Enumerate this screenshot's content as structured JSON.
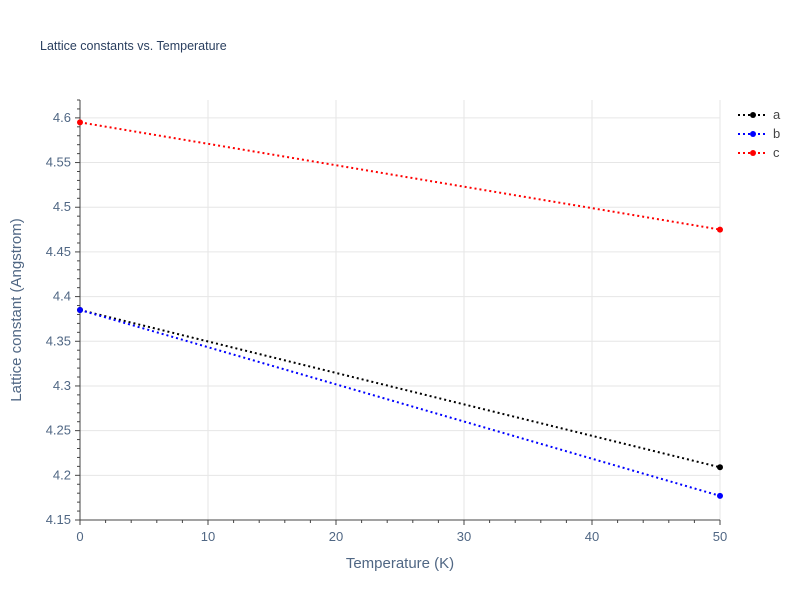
{
  "chart_data": {
    "type": "line",
    "title": "Lattice constants vs. Temperature",
    "xlabel": "Temperature (K)",
    "ylabel": "Lattice constant (Angstrom)",
    "x": [
      0,
      50
    ],
    "xlim": [
      0,
      50
    ],
    "ylim": [
      4.15,
      4.62
    ],
    "x_ticks": [
      0,
      10,
      20,
      30,
      40,
      50
    ],
    "x_tick_labels": [
      "0",
      "10",
      "20",
      "30",
      "40",
      "50"
    ],
    "y_ticks": [
      4.15,
      4.2,
      4.25,
      4.3,
      4.35,
      4.4,
      4.45,
      4.5,
      4.55,
      4.6
    ],
    "y_tick_labels": [
      "4.15",
      "4.2",
      "4.25",
      "4.3",
      "4.35",
      "4.4",
      "4.45",
      "4.5",
      "4.55",
      "4.6"
    ],
    "grid": true,
    "legend_position": "top-right",
    "line_style": "dotted",
    "series": [
      {
        "name": "a",
        "color": "#000000",
        "values": [
          4.385,
          4.209
        ]
      },
      {
        "name": "b",
        "color": "#0000ff",
        "values": [
          4.385,
          4.177
        ]
      },
      {
        "name": "c",
        "color": "#ff0000",
        "values": [
          4.595,
          4.475
        ]
      }
    ]
  }
}
